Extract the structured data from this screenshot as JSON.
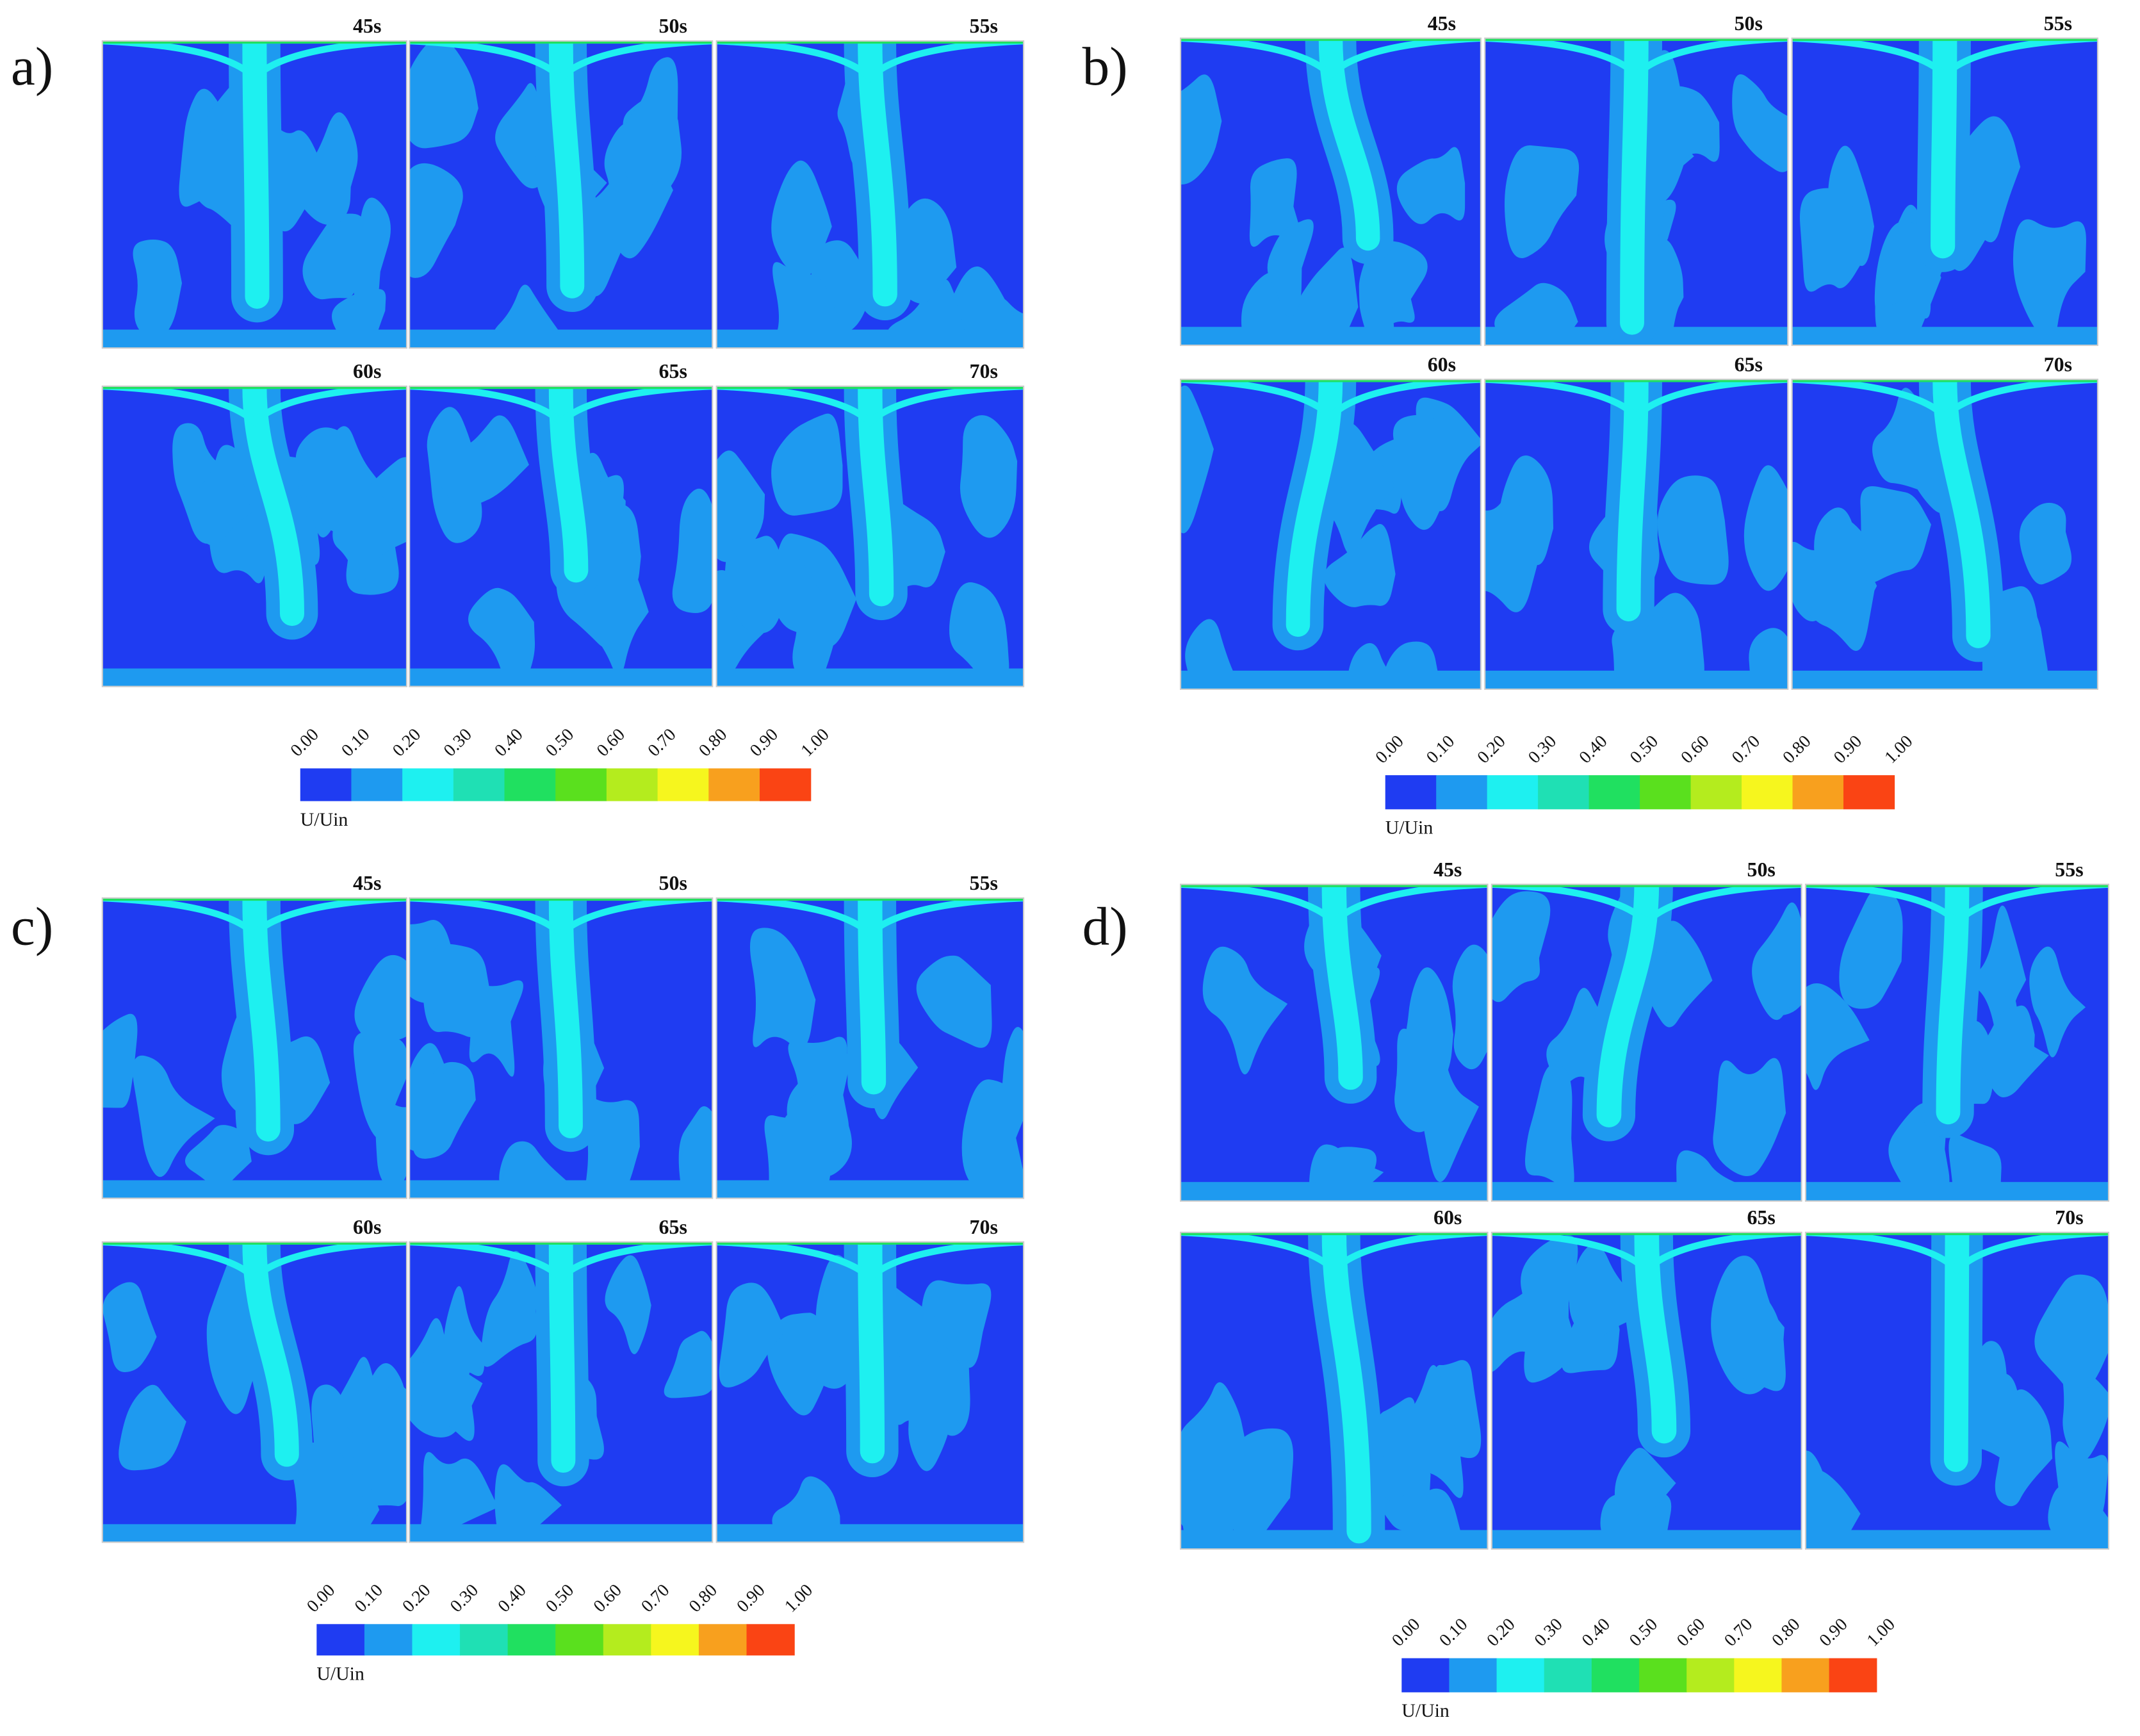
{
  "panels": [
    {
      "label": "a)",
      "frames": [
        "45s",
        "50s",
        "55s",
        "60s",
        "65s",
        "70s"
      ],
      "colorbar": {
        "ticks": [
          "0.00",
          "0.10",
          "0.20",
          "0.30",
          "0.40",
          "0.50",
          "0.60",
          "0.70",
          "0.80",
          "0.90",
          "1.00"
        ],
        "colors": [
          "#1f3cf2",
          "#1e9af0",
          "#1ef0f0",
          "#1fe0b4",
          "#20e060",
          "#5ae01e",
          "#b4ec1e",
          "#f6f61e",
          "#f8a01e",
          "#fa4414"
        ],
        "label": "U/Uin"
      }
    },
    {
      "label": "b)",
      "frames": [
        "45s",
        "50s",
        "55s",
        "60s",
        "65s",
        "70s"
      ],
      "colorbar": {
        "ticks": [
          "0.00",
          "0.10",
          "0.20",
          "0.30",
          "0.40",
          "0.50",
          "0.60",
          "0.70",
          "0.80",
          "0.90",
          "1.00"
        ],
        "colors": [
          "#1f3cf2",
          "#1e9af0",
          "#1ef0f0",
          "#1fe0b4",
          "#20e060",
          "#5ae01e",
          "#b4ec1e",
          "#f6f61e",
          "#f8a01e",
          "#fa4414"
        ],
        "label": "U/Uin"
      }
    },
    {
      "label": "c)",
      "frames": [
        "45s",
        "50s",
        "55s",
        "60s",
        "65s",
        "70s"
      ],
      "colorbar": {
        "ticks": [
          "0.00",
          "0.10",
          "0.20",
          "0.30",
          "0.40",
          "0.50",
          "0.60",
          "0.70",
          "0.80",
          "0.90",
          "1.00"
        ],
        "colors": [
          "#1f3cf2",
          "#1e9af0",
          "#1ef0f0",
          "#1fe0b4",
          "#20e060",
          "#5ae01e",
          "#b4ec1e",
          "#f6f61e",
          "#f8a01e",
          "#fa4414"
        ],
        "label": "U/Uin"
      }
    },
    {
      "label": "d)",
      "frames": [
        "45s",
        "50s",
        "55s",
        "60s",
        "65s",
        "70s"
      ],
      "colorbar": {
        "ticks": [
          "0.00",
          "0.10",
          "0.20",
          "0.30",
          "0.40",
          "0.50",
          "0.60",
          "0.70",
          "0.80",
          "0.90",
          "1.00"
        ],
        "colors": [
          "#1f3cf2",
          "#1e9af0",
          "#1ef0f0",
          "#1fe0b4",
          "#20e060",
          "#5ae01e",
          "#b4ec1e",
          "#f6f61e",
          "#f8a01e",
          "#fa4414"
        ],
        "label": "U/Uin"
      }
    }
  ]
}
